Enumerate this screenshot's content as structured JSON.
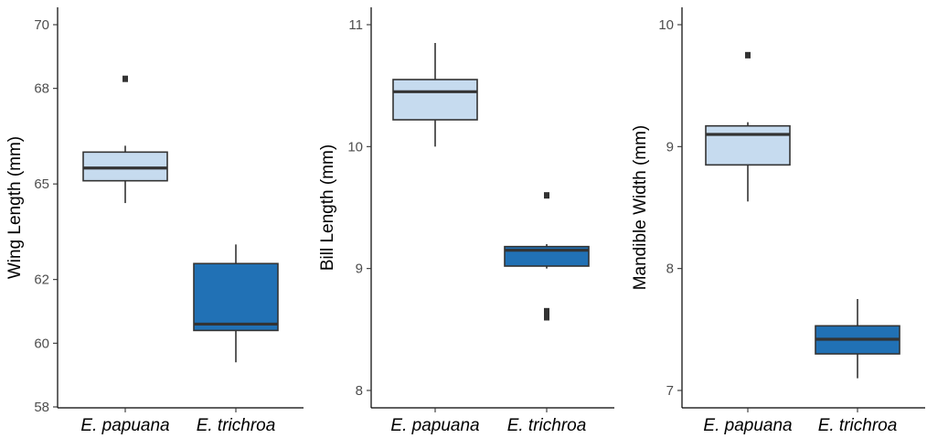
{
  "chart_data": [
    {
      "type": "box",
      "ylabel": "Wing Length (mm)",
      "categories": [
        "E. papuana",
        "E. trichroa"
      ],
      "yticks": [
        58,
        60,
        62,
        65,
        68,
        70
      ],
      "boxes": [
        {
          "category": "E. papuana",
          "whisker_low": 64.4,
          "q1": 65.1,
          "median": 65.5,
          "q3": 66.0,
          "whisker_high": 66.2,
          "outliers": [
            68.3
          ],
          "fill": "#c6dbef"
        },
        {
          "category": "E. trichroa",
          "whisker_low": 59.4,
          "q1": 60.4,
          "median": 60.6,
          "q3": 62.5,
          "whisker_high": 63.1,
          "outliers": [],
          "fill": "#2171b5"
        }
      ]
    },
    {
      "type": "box",
      "ylabel": "Bill Length (mm)",
      "categories": [
        "E. papuana",
        "E. trichroa"
      ],
      "yticks": [
        8,
        9,
        10,
        11
      ],
      "ylim": [
        7.95,
        11.13
      ],
      "boxes": [
        {
          "category": "E. papuana",
          "whisker_low": 10.0,
          "q1": 10.22,
          "median": 10.45,
          "q3": 10.55,
          "whisker_high": 10.85,
          "outliers": [],
          "fill": "#c6dbef"
        },
        {
          "category": "E. trichroa",
          "whisker_low": 9.0,
          "q1": 9.02,
          "median": 9.15,
          "q3": 9.18,
          "whisker_high": 9.2,
          "outliers": [
            9.6,
            8.65,
            8.6
          ],
          "fill": "#2171b5"
        }
      ]
    },
    {
      "type": "box",
      "ylabel": "Mandible Width (mm)",
      "categories": [
        "E. papuana",
        "E. trichroa"
      ],
      "yticks": [
        7,
        8,
        9,
        10
      ],
      "ylim": [
        6.95,
        10.13
      ],
      "boxes": [
        {
          "category": "E. papuana",
          "whisker_low": 8.55,
          "q1": 8.85,
          "median": 9.1,
          "q3": 9.17,
          "whisker_high": 9.2,
          "outliers": [
            9.75
          ],
          "fill": "#c6dbef"
        },
        {
          "category": "E. trichroa",
          "whisker_low": 7.1,
          "q1": 7.3,
          "median": 7.42,
          "q3": 7.53,
          "whisker_high": 7.75,
          "outliers": [],
          "fill": "#2171b5"
        }
      ]
    }
  ]
}
